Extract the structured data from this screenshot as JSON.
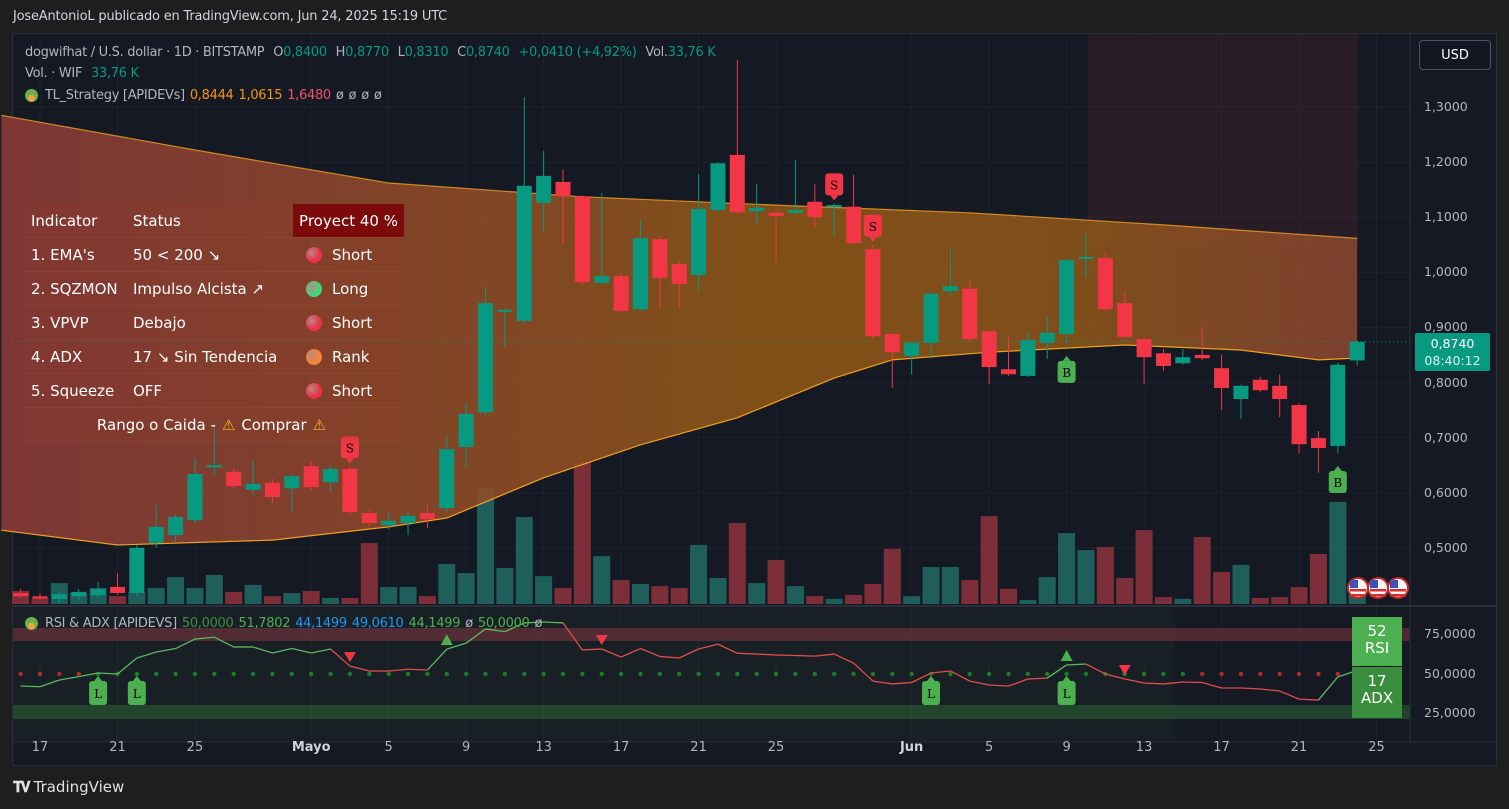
{
  "header": {
    "attribution": "JoseAntonioL publicado en TradingView.com, Jun 24, 2025 15:19 UTC"
  },
  "legend": {
    "symbol": "dogwifhat / U.S. dollar · 1D · BITSTAMP",
    "o_label": "O",
    "o": "0,8400",
    "h_label": "H",
    "h": "0,8770",
    "l_label": "L",
    "l": "0,8310",
    "c_label": "C",
    "c": "0,8740",
    "change": "+0,0410 (+4,92%)",
    "vol_label": "Vol.",
    "vol": "33,76 K"
  },
  "volume_legend": {
    "label": "Vol. · WIF",
    "value": "33,76 K"
  },
  "strategy_legend": {
    "name": "TL_Strategy [APIDEVs]",
    "v1": "0,8444",
    "v2": "1,0615",
    "v3": "1,6480",
    "n1": "ø",
    "n2": "ø",
    "n3": "ø",
    "n4": "ø"
  },
  "currency_button": "USD",
  "price_label": {
    "value": "0,8740",
    "countdown": "08:40:12"
  },
  "table": {
    "headers": {
      "indicator": "Indicator",
      "status": "Status",
      "projection": "Proyect 40 %"
    },
    "rows": [
      {
        "indicator": "1. EMA's",
        "status": "50 < 200 ↘",
        "signal": "Short",
        "dot_color": "#e8334d"
      },
      {
        "indicator": "2. SQZMON",
        "status": "Impulso Alcista ↗",
        "signal": "Long",
        "dot_color": "#3fd67a"
      },
      {
        "indicator": "3. VPVP",
        "status": "Debajo",
        "signal": "Short",
        "dot_color": "#e8334d"
      },
      {
        "indicator": "4. ADX",
        "status": "17 ↘ Sin Tendencia",
        "signal": "Rank",
        "dot_color": "#f5843a"
      },
      {
        "indicator": "5. Squeeze",
        "status": "OFF",
        "signal": "Short",
        "dot_color": "#e8334d"
      }
    ],
    "footer_left": "Rango o Caida -",
    "warn_icon": "⚠",
    "footer_right": "Comprar"
  },
  "rsi_legend": {
    "name": "RSI & ADX [APIDEVS]",
    "values": [
      {
        "text": "50,0000",
        "color": "#3e8e41"
      },
      {
        "text": "51,7802",
        "color": "#4caf50"
      },
      {
        "text": "44,1499",
        "color": "#2196f3"
      },
      {
        "text": "49,0610",
        "color": "#2196f3"
      },
      {
        "text": "44,1499",
        "color": "#4caf50"
      },
      {
        "text": "ø",
        "color": "#b2b5be"
      },
      {
        "text": "50,0000",
        "color": "#4caf50"
      },
      {
        "text": "ø",
        "color": "#b2b5be"
      }
    ]
  },
  "rsi_badge": {
    "value": "52",
    "label": "RSI",
    "color": "#4caf50"
  },
  "adx_badge": {
    "value": "17",
    "label": "ADX",
    "color": "#388e3c"
  },
  "footer": {
    "brand": "TradingView"
  },
  "colors": {
    "up": "#089981",
    "down": "#f23645",
    "up_volume": "#1e5e5b",
    "down_volume": "#7c2f38",
    "band_line": "#f0a020"
  },
  "chart_data": [
    {
      "type": "candlestick",
      "title": "dogwifhat / U.S. dollar · 1D · BITSTAMP",
      "ylim": [
        0.4,
        1.39
      ],
      "y_ticks": [
        {
          "v": 1.3,
          "label": "1,3000"
        },
        {
          "v": 1.2,
          "label": "1,2000"
        },
        {
          "v": 1.1,
          "label": "1,1000"
        },
        {
          "v": 1.0,
          "label": "1,0000"
        },
        {
          "v": 0.9,
          "label": "0,9000"
        },
        {
          "v": 0.8,
          "label": "0,8000"
        },
        {
          "v": 0.7,
          "label": "0,7000"
        },
        {
          "v": 0.6,
          "label": "0,6000"
        },
        {
          "v": 0.5,
          "label": "0,5000"
        }
      ],
      "x_ticks": [
        {
          "date": "2025-04-17",
          "label": "17"
        },
        {
          "date": "2025-04-21",
          "label": "21"
        },
        {
          "date": "2025-04-25",
          "label": "25"
        },
        {
          "date": "2025-05-01",
          "label": "Mayo",
          "bold": true
        },
        {
          "date": "2025-05-05",
          "label": "5"
        },
        {
          "date": "2025-05-09",
          "label": "9"
        },
        {
          "date": "2025-05-13",
          "label": "13"
        },
        {
          "date": "2025-05-17",
          "label": "17"
        },
        {
          "date": "2025-05-21",
          "label": "21"
        },
        {
          "date": "2025-05-25",
          "label": "25"
        },
        {
          "date": "2025-06-01",
          "label": "Jun",
          "bold": true
        },
        {
          "date": "2025-06-05",
          "label": "5"
        },
        {
          "date": "2025-06-09",
          "label": "9"
        },
        {
          "date": "2025-06-13",
          "label": "13"
        },
        {
          "date": "2025-06-17",
          "label": "17"
        },
        {
          "date": "2025-06-21",
          "label": "21"
        },
        {
          "date": "2025-06-25",
          "label": "25"
        }
      ],
      "grid": true,
      "ohlcv_columns": [
        "date",
        "open",
        "high",
        "low",
        "close",
        "volume_k"
      ],
      "ohlcv": [
        [
          "2025-04-16",
          0.418,
          0.425,
          0.41,
          0.412,
          43
        ],
        [
          "2025-04-17",
          0.412,
          0.418,
          0.405,
          0.408,
          20
        ],
        [
          "2025-04-18",
          0.407,
          0.42,
          0.4,
          0.416,
          69
        ],
        [
          "2025-04-19",
          0.412,
          0.425,
          0.405,
          0.42,
          36
        ],
        [
          "2025-04-20",
          0.414,
          0.438,
          0.41,
          0.425,
          53
        ],
        [
          "2025-04-21",
          0.429,
          0.454,
          0.415,
          0.418,
          26
        ],
        [
          "2025-04-22",
          0.418,
          0.505,
          0.412,
          0.5,
          40
        ],
        [
          "2025-04-23",
          0.509,
          0.578,
          0.5,
          0.538,
          53
        ],
        [
          "2025-04-24",
          0.523,
          0.56,
          0.509,
          0.556,
          89
        ],
        [
          "2025-04-25",
          0.55,
          0.663,
          0.545,
          0.634,
          53
        ],
        [
          "2025-04-26",
          0.646,
          0.728,
          0.632,
          0.65,
          96
        ],
        [
          "2025-04-27",
          0.638,
          0.645,
          0.608,
          0.612,
          40
        ],
        [
          "2025-04-28",
          0.605,
          0.657,
          0.596,
          0.616,
          63
        ],
        [
          "2025-04-29",
          0.618,
          0.625,
          0.581,
          0.592,
          26
        ],
        [
          "2025-04-30",
          0.608,
          0.635,
          0.563,
          0.63,
          36
        ],
        [
          "2025-05-01",
          0.648,
          0.656,
          0.605,
          0.61,
          43
        ],
        [
          "2025-05-02",
          0.619,
          0.648,
          0.601,
          0.643,
          20
        ],
        [
          "2025-05-03",
          0.643,
          0.648,
          0.562,
          0.565,
          20
        ],
        [
          "2025-05-04",
          0.563,
          0.568,
          0.54,
          0.545,
          201
        ],
        [
          "2025-05-05",
          0.541,
          0.563,
          0.534,
          0.549,
          56
        ],
        [
          "2025-05-06",
          0.545,
          0.565,
          0.523,
          0.558,
          56
        ],
        [
          "2025-05-07",
          0.563,
          0.578,
          0.536,
          0.552,
          26
        ],
        [
          "2025-05-08",
          0.572,
          0.705,
          0.565,
          0.679,
          132
        ],
        [
          "2025-05-09",
          0.683,
          0.761,
          0.647,
          0.743,
          102
        ],
        [
          "2025-05-10",
          0.746,
          0.973,
          0.74,
          0.944,
          383
        ],
        [
          "2025-05-11",
          0.93,
          0.935,
          0.864,
          0.932,
          119
        ],
        [
          "2025-05-12",
          0.912,
          1.318,
          0.905,
          1.157,
          287
        ],
        [
          "2025-05-13",
          1.126,
          1.22,
          1.073,
          1.175,
          92
        ],
        [
          "2025-05-14",
          1.164,
          1.187,
          1.051,
          1.138,
          53
        ],
        [
          "2025-05-15",
          1.138,
          1.14,
          0.978,
          0.982,
          469
        ],
        [
          "2025-05-16",
          0.981,
          1.144,
          0.978,
          0.993,
          158
        ],
        [
          "2025-05-17",
          0.993,
          0.998,
          0.926,
          0.93,
          79
        ],
        [
          "2025-05-18",
          0.933,
          1.097,
          0.93,
          1.062,
          66
        ],
        [
          "2025-05-19",
          1.06,
          1.065,
          0.935,
          0.99,
          59
        ],
        [
          "2025-05-20",
          1.015,
          1.02,
          0.935,
          0.979,
          53
        ],
        [
          "2025-05-21",
          0.995,
          1.178,
          0.966,
          1.115,
          195
        ],
        [
          "2025-05-22",
          1.113,
          1.2,
          1.11,
          1.198,
          86
        ],
        [
          "2025-05-23",
          1.213,
          1.385,
          1.105,
          1.109,
          267
        ],
        [
          "2025-05-24",
          1.111,
          1.16,
          1.086,
          1.117,
          69
        ],
        [
          "2025-05-25",
          1.108,
          1.11,
          1.017,
          1.102,
          145
        ],
        [
          "2025-05-26",
          1.108,
          1.204,
          1.105,
          1.113,
          59
        ],
        [
          "2025-05-27",
          1.128,
          1.16,
          1.08,
          1.1,
          26
        ],
        [
          "2025-05-28",
          1.119,
          1.125,
          1.066,
          1.122,
          17
        ],
        [
          "2025-05-29",
          1.119,
          1.177,
          1.05,
          1.053,
          30
        ],
        [
          "2025-05-30",
          1.042,
          1.05,
          0.88,
          0.884,
          66
        ],
        [
          "2025-05-31",
          0.888,
          0.89,
          0.79,
          0.855,
          182
        ],
        [
          "2025-06-01",
          0.848,
          0.875,
          0.815,
          0.872,
          26
        ],
        [
          "2025-06-02",
          0.872,
          0.965,
          0.844,
          0.961,
          122
        ],
        [
          "2025-06-03",
          0.966,
          1.044,
          0.957,
          0.975,
          122
        ],
        [
          "2025-06-04",
          0.97,
          0.984,
          0.875,
          0.879,
          79
        ],
        [
          "2025-06-05",
          0.893,
          0.895,
          0.797,
          0.828,
          290
        ],
        [
          "2025-06-06",
          0.824,
          0.883,
          0.812,
          0.815,
          50
        ],
        [
          "2025-06-07",
          0.812,
          0.892,
          0.81,
          0.877,
          13
        ],
        [
          "2025-06-08",
          0.872,
          0.919,
          0.843,
          0.89,
          89
        ],
        [
          "2025-06-09",
          0.888,
          1.025,
          0.872,
          1.022,
          234
        ],
        [
          "2025-06-10",
          1.026,
          1.071,
          0.99,
          1.028,
          178
        ],
        [
          "2025-06-11",
          1.026,
          1.037,
          0.93,
          0.933,
          188
        ],
        [
          "2025-06-12",
          0.944,
          0.964,
          0.88,
          0.883,
          86
        ],
        [
          "2025-06-13",
          0.879,
          0.88,
          0.797,
          0.846,
          244
        ],
        [
          "2025-06-14",
          0.853,
          0.861,
          0.821,
          0.83,
          23
        ],
        [
          "2025-06-15",
          0.835,
          0.861,
          0.832,
          0.846,
          17
        ],
        [
          "2025-06-16",
          0.85,
          0.901,
          0.84,
          0.844,
          221
        ],
        [
          "2025-06-17",
          0.826,
          0.85,
          0.75,
          0.79,
          106
        ],
        [
          "2025-06-18",
          0.77,
          0.796,
          0.734,
          0.794,
          129
        ],
        [
          "2025-06-19",
          0.805,
          0.81,
          0.783,
          0.786,
          20
        ],
        [
          "2025-06-20",
          0.794,
          0.815,
          0.737,
          0.77,
          23
        ],
        [
          "2025-06-21",
          0.759,
          0.762,
          0.672,
          0.688,
          56
        ],
        [
          "2025-06-22",
          0.699,
          0.712,
          0.636,
          0.681,
          165
        ],
        [
          "2025-06-23",
          0.685,
          0.836,
          0.672,
          0.832,
          337
        ],
        [
          "2025-06-24",
          0.84,
          0.877,
          0.831,
          0.874,
          33.76
        ]
      ],
      "last_price_line": 0.874,
      "band": {
        "upper": [
          [
            "2025-04-15",
            1.285
          ],
          [
            "2025-04-25",
            1.222
          ],
          [
            "2025-05-05",
            1.162
          ],
          [
            "2025-05-15",
            1.137
          ],
          [
            "2025-05-25",
            1.122
          ],
          [
            "2025-06-04",
            1.108
          ],
          [
            "2025-06-14",
            1.086
          ],
          [
            "2025-06-24",
            1.0615
          ]
        ],
        "lower": [
          [
            "2025-04-15",
            0.532
          ],
          [
            "2025-04-21",
            0.505
          ],
          [
            "2025-04-29",
            0.514
          ],
          [
            "2025-05-05",
            0.538
          ],
          [
            "2025-05-08",
            0.554
          ],
          [
            "2025-05-13",
            0.627
          ],
          [
            "2025-05-18",
            0.687
          ],
          [
            "2025-05-23",
            0.736
          ],
          [
            "2025-05-28",
            0.808
          ],
          [
            "2025-05-31",
            0.841
          ],
          [
            "2025-06-05",
            0.855
          ],
          [
            "2025-06-12",
            0.868
          ],
          [
            "2025-06-18",
            0.859
          ],
          [
            "2025-06-22",
            0.841
          ],
          [
            "2025-06-24",
            0.8444
          ]
        ]
      },
      "signals": [
        {
          "date": "2025-05-03",
          "label": "S",
          "position": "above",
          "color": "#f23645"
        },
        {
          "date": "2025-05-28",
          "label": "S",
          "position": "above",
          "color": "#f23645"
        },
        {
          "date": "2025-05-30",
          "label": "S",
          "position": "above",
          "color": "#f23645"
        },
        {
          "date": "2025-06-09",
          "label": "B",
          "position": "below",
          "color": "#4caf50"
        },
        {
          "date": "2025-06-23",
          "label": "B",
          "position": "below",
          "color": "#4caf50"
        }
      ]
    },
    {
      "type": "line",
      "title": "RSI & ADX [APIDEVS]",
      "ylim": [
        15,
        90
      ],
      "y_ticks": [
        {
          "v": 75,
          "label": "75,0000"
        },
        {
          "v": 50,
          "label": "50,0000"
        },
        {
          "v": 25,
          "label": "25,0000"
        }
      ],
      "start_date": "2025-04-16",
      "rsi": [
        42.1,
        41.6,
        45.9,
        48.0,
        50.3,
        49.7,
        59.8,
        63.6,
        65.8,
        71.8,
        73.0,
        66.8,
        66.8,
        63.0,
        65.8,
        63.0,
        65.5,
        54.7,
        51.6,
        51.6,
        52.7,
        52.2,
        65.4,
        69.2,
        78.2,
        76.5,
        82.0,
        82.6,
        82.0,
        64.9,
        65.5,
        60.4,
        65.8,
        60.8,
        59.8,
        65.5,
        68.6,
        62.8,
        62.3,
        61.7,
        61.4,
        61.0,
        62.3,
        56.6,
        45.2,
        43.4,
        44.3,
        50.3,
        51.6,
        45.2,
        42.7,
        42.0,
        46.5,
        47.1,
        55.4,
        56.0,
        49.7,
        46.5,
        44.0,
        43.4,
        44.6,
        44.3,
        40.8,
        40.8,
        40.2,
        38.9,
        33.8,
        33.2,
        47.8,
        52.0
      ],
      "bullish_ranges": [
        [
          "2025-04-16",
          "2025-05-02"
        ],
        [
          "2025-05-07",
          "2025-05-14"
        ],
        [
          "2025-06-08",
          "2025-06-10"
        ],
        [
          "2025-06-22",
          "2025-06-24"
        ]
      ],
      "adx_dots_red_ranges": [
        [
          "2025-04-16",
          "2025-04-19"
        ],
        [
          "2025-06-16",
          "2025-06-24"
        ]
      ],
      "markers": [
        {
          "date": "2025-04-20",
          "type": "L"
        },
        {
          "date": "2025-04-22",
          "type": "L"
        },
        {
          "date": "2025-05-03",
          "type": "down"
        },
        {
          "date": "2025-05-08",
          "type": "up"
        },
        {
          "date": "2025-05-16",
          "type": "down"
        },
        {
          "date": "2025-06-02",
          "type": "L"
        },
        {
          "date": "2025-06-09",
          "type": "L"
        },
        {
          "date": "2025-06-09",
          "type": "up"
        },
        {
          "date": "2025-06-12",
          "type": "down"
        }
      ]
    }
  ]
}
